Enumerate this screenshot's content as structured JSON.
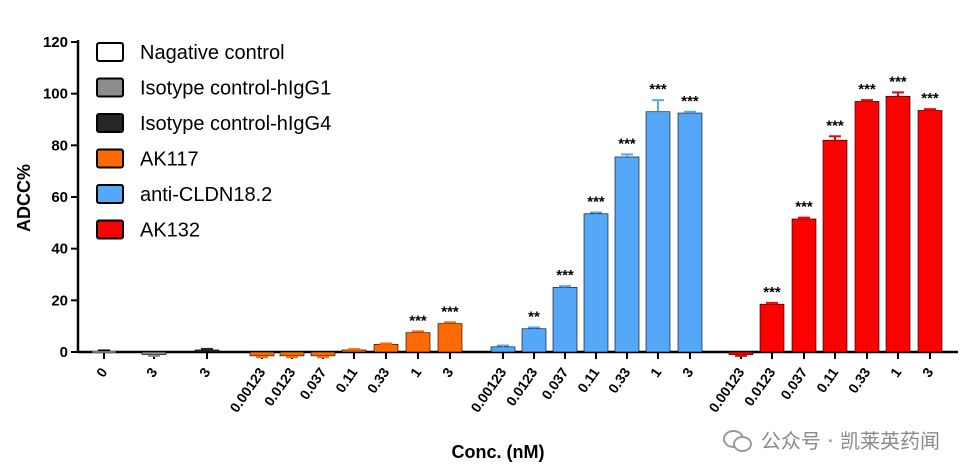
{
  "chart_data": {
    "type": "bar",
    "ylabel": "ADCC%",
    "xlabel": "Conc. (nM)",
    "ylim": [
      0,
      120
    ],
    "yticks": [
      0,
      20,
      40,
      60,
      80,
      100,
      120
    ],
    "colors": {
      "Nagative control": "#ffffff",
      "Isotype control-hIgG1": "#8c8c8c",
      "Isotype control-hIgG4": "#262626",
      "AK117": "#ff6a00",
      "anti-CLDN18.2": "#55a8f7",
      "AK132": "#ff0000"
    },
    "legend": [
      {
        "name": "Nagative control",
        "color": "#ffffff"
      },
      {
        "name": "Isotype control-hIgG1",
        "color": "#8c8c8c"
      },
      {
        "name": "Isotype control-hIgG4",
        "color": "#262626"
      },
      {
        "name": "AK117",
        "color": "#ff6a00"
      },
      {
        "name": "anti-CLDN18.2",
        "color": "#55a8f7"
      },
      {
        "name": "AK132",
        "color": "#ff0000"
      }
    ],
    "legend_position": "top-left",
    "groups": [
      {
        "series": "Nagative control",
        "categories": [
          "0"
        ],
        "values": [
          0.3
        ],
        "errors": [
          0.3
        ],
        "sig": [
          ""
        ]
      },
      {
        "series": "Isotype control-hIgG1",
        "categories": [
          "3"
        ],
        "values": [
          -1.0
        ],
        "errors": [
          0.5
        ],
        "sig": [
          ""
        ]
      },
      {
        "series": "Isotype control-hIgG4",
        "categories": [
          "3"
        ],
        "values": [
          0.8
        ],
        "errors": [
          0.4
        ],
        "sig": [
          ""
        ]
      },
      {
        "series": "AK117",
        "categories": [
          "0.00123",
          "0.0123",
          "0.037",
          "0.11",
          "0.33",
          "1",
          "3"
        ],
        "values": [
          -1.5,
          -1.5,
          -1.5,
          0.8,
          3.0,
          7.5,
          11.0
        ],
        "errors": [
          0.5,
          0.5,
          0.5,
          0.3,
          0.3,
          0.5,
          0.5
        ],
        "sig": [
          "",
          "",
          "",
          "",
          "",
          "***",
          "***"
        ]
      },
      {
        "series": "anti-CLDN18.2",
        "categories": [
          "0.00123",
          "0.0123",
          "0.037",
          "0.11",
          "0.33",
          "1",
          "3"
        ],
        "values": [
          2.0,
          9.0,
          25.0,
          53.5,
          75.5,
          93.0,
          92.5
        ],
        "errors": [
          0.5,
          0.5,
          0.5,
          0.5,
          1.0,
          4.5,
          0.5
        ],
        "sig": [
          "",
          "**",
          "***",
          "***",
          "***",
          "***",
          "***"
        ]
      },
      {
        "series": "AK132",
        "categories": [
          "0.00123",
          "0.0123",
          "0.037",
          "0.11",
          "0.33",
          "1",
          "3"
        ],
        "values": [
          -1.0,
          18.5,
          51.5,
          82.0,
          97.0,
          99.0,
          93.5
        ],
        "errors": [
          0.5,
          0.5,
          0.5,
          1.5,
          0.5,
          1.5,
          0.5
        ],
        "sig": [
          "",
          "***",
          "***",
          "***",
          "***",
          "***",
          "***"
        ]
      }
    ]
  },
  "watermark": {
    "text": "公众号 · 凯莱英药闻",
    "icon": "wechat-icon"
  }
}
